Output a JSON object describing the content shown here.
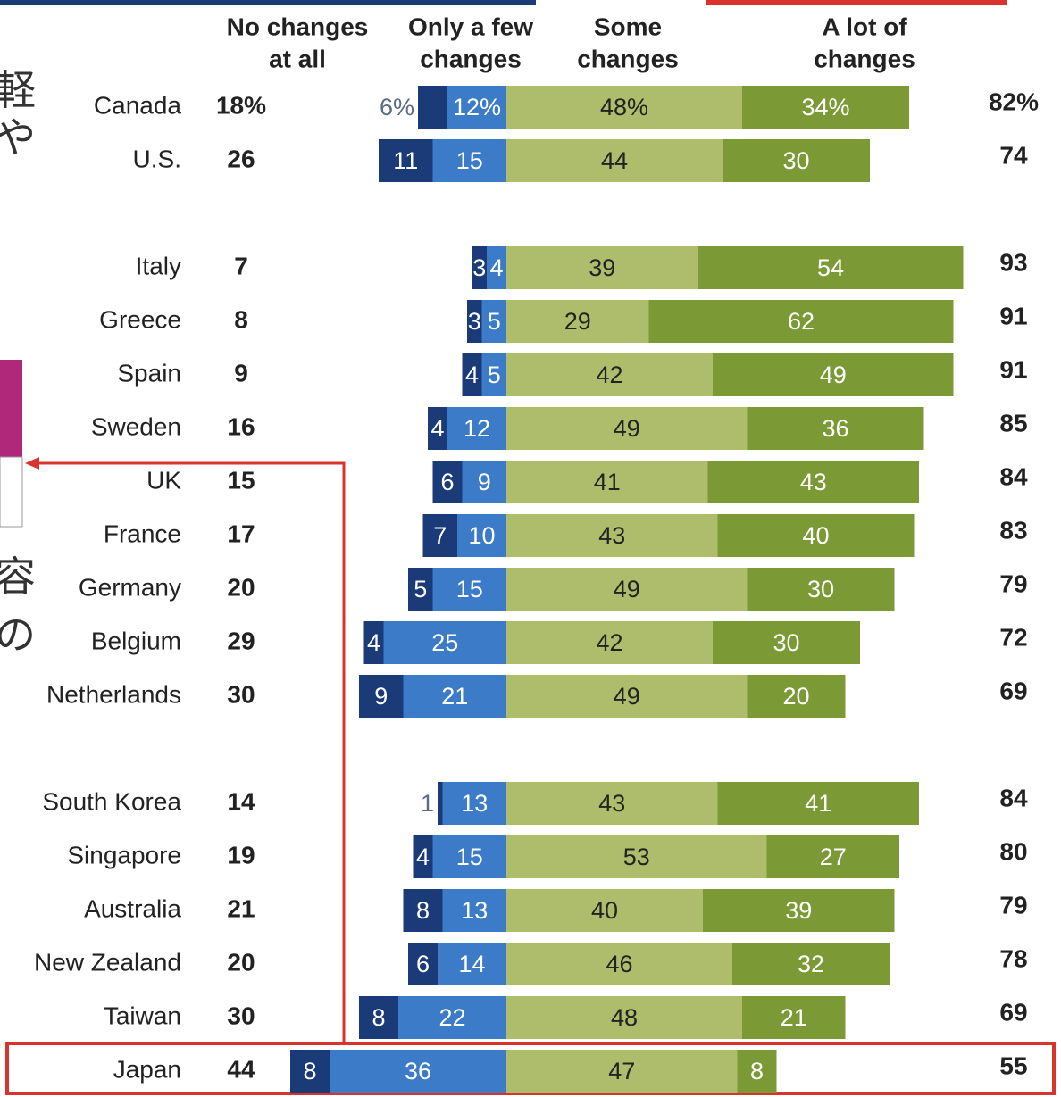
{
  "chart_data": {
    "type": "diverging-bar",
    "headers": [
      [
        "No changes",
        "at all"
      ],
      [
        "Only a few",
        "changes"
      ],
      [
        "Some",
        "changes"
      ],
      [
        "A lot of",
        "changes"
      ]
    ],
    "categories": [
      "Canada",
      "U.S.",
      "Italy",
      "Greece",
      "Spain",
      "Sweden",
      "UK",
      "France",
      "Germany",
      "Belgium",
      "Netherlands",
      "South Korea",
      "Singapore",
      "Australia",
      "New Zealand",
      "Taiwan",
      "Japan"
    ],
    "left_totals": {
      "values": [
        18,
        26,
        7,
        8,
        9,
        16,
        15,
        17,
        20,
        29,
        30,
        14,
        19,
        21,
        20,
        30,
        44
      ],
      "value_labels": [
        "18%",
        "26",
        "7",
        "8",
        "9",
        "16",
        "15",
        "17",
        "20",
        "29",
        "30",
        "14",
        "19",
        "21",
        "20",
        "30",
        "44"
      ]
    },
    "right_totals": {
      "values": [
        82,
        74,
        93,
        91,
        91,
        85,
        84,
        83,
        79,
        72,
        69,
        84,
        80,
        79,
        78,
        69,
        55
      ],
      "value_labels": [
        "82%",
        "74",
        "93",
        "91",
        "91",
        "85",
        "84",
        "83",
        "79",
        "72",
        "69",
        "84",
        "80",
        "79",
        "78",
        "69",
        "55"
      ]
    },
    "series": [
      {
        "color": "#1b3a78",
        "values": [
          6,
          11,
          3,
          3,
          4,
          4,
          6,
          7,
          5,
          4,
          9,
          1,
          4,
          8,
          6,
          8,
          8
        ],
        "value_labels": [
          "6%",
          "11",
          "3",
          "3",
          "4",
          "4",
          "6",
          "7",
          "5",
          "4",
          "9",
          "1",
          "4",
          "8",
          "6",
          "8",
          "8"
        ]
      },
      {
        "color": "#3b7bc8",
        "values": [
          12,
          15,
          4,
          5,
          5,
          12,
          9,
          10,
          15,
          25,
          21,
          13,
          15,
          13,
          14,
          22,
          36
        ],
        "value_labels": [
          "12%",
          "15",
          "4",
          "5",
          "5",
          "12",
          "9",
          "10",
          "15",
          "25",
          "21",
          "13",
          "15",
          "13",
          "14",
          "22",
          "36"
        ]
      },
      {
        "color": "#aebd6c",
        "values": [
          48,
          44,
          39,
          29,
          42,
          49,
          41,
          43,
          49,
          42,
          49,
          43,
          53,
          40,
          46,
          48,
          47
        ],
        "value_labels": [
          "48%",
          "44",
          "39",
          "29",
          "42",
          "49",
          "41",
          "43",
          "49",
          "42",
          "49",
          "43",
          "53",
          "40",
          "46",
          "48",
          "47"
        ]
      },
      {
        "color": "#7b9a36",
        "values": [
          34,
          30,
          54,
          62,
          49,
          36,
          43,
          40,
          30,
          30,
          20,
          41,
          27,
          39,
          32,
          21,
          8
        ],
        "value_labels": [
          "34%",
          "30",
          "54",
          "62",
          "49",
          "36",
          "43",
          "40",
          "30",
          "30",
          "20",
          "41",
          "27",
          "39",
          "32",
          "21",
          "8"
        ]
      }
    ],
    "xlim": [
      -60,
      110
    ],
    "highlight_color": "#d8342c",
    "margin_text": [
      "軽",
      "や",
      "容",
      "の"
    ]
  }
}
